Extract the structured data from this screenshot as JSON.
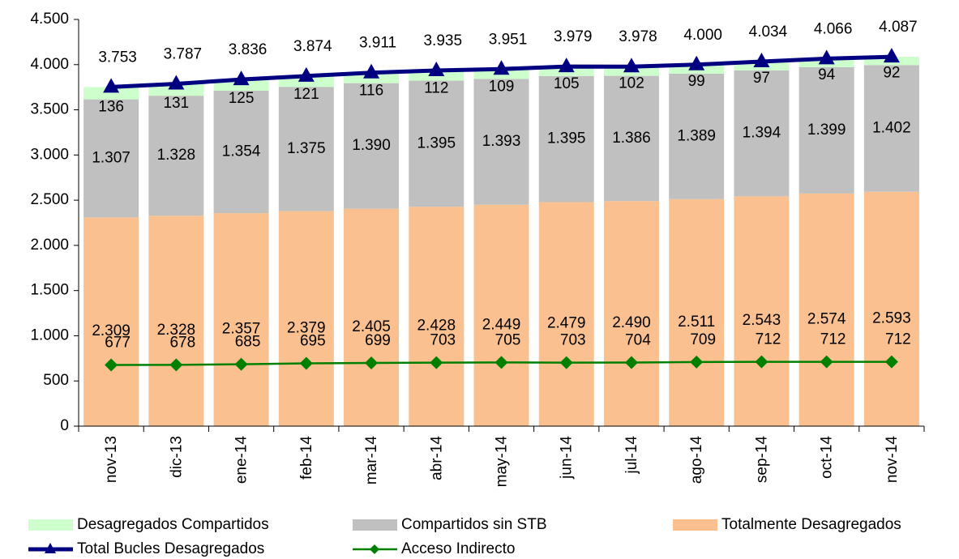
{
  "chart_data": {
    "type": "bar",
    "stacked": true,
    "categories": [
      "nov-13",
      "dic-13",
      "ene-14",
      "feb-14",
      "mar-14",
      "abr-14",
      "may-14",
      "jun-14",
      "jul-14",
      "ago-14",
      "sep-14",
      "oct-14",
      "nov-14"
    ],
    "ylim": [
      0,
      4500
    ],
    "yticks": [
      0,
      500,
      {
        "value": 1000,
        "label": "1.000"
      },
      {
        "value": 1500,
        "label": "1.500"
      },
      {
        "value": 2000,
        "label": "2.000"
      },
      {
        "value": 2500,
        "label": "2.500"
      },
      {
        "value": 3000,
        "label": "3.000"
      },
      {
        "value": 3500,
        "label": "3.500"
      },
      {
        "value": 4000,
        "label": "4.000"
      },
      {
        "value": 4500,
        "label": "4.500"
      }
    ],
    "grid": false,
    "legend": "bottom",
    "series": [
      {
        "name": "Totalmente Desagregados",
        "type": "bar",
        "color": "#fac090",
        "values": [
          2309,
          2328,
          2357,
          2379,
          2405,
          2428,
          2449,
          2479,
          2490,
          2511,
          2543,
          2574,
          2593
        ],
        "value_labels": [
          "2.309",
          "2.328",
          "2.357",
          "2.379",
          "2.405",
          "2.428",
          "2.449",
          "2.479",
          "2.490",
          "2.511",
          "2.543",
          "2.574",
          "2.593"
        ]
      },
      {
        "name": "Compartidos sin STB",
        "type": "bar",
        "color": "#c0c0c0",
        "values": [
          1307,
          1328,
          1354,
          1375,
          1390,
          1395,
          1393,
          1395,
          1386,
          1389,
          1394,
          1399,
          1402
        ],
        "value_labels": [
          "1.307",
          "1.328",
          "1.354",
          "1.375",
          "1.390",
          "1.395",
          "1.393",
          "1.395",
          "1.386",
          "1.389",
          "1.394",
          "1.399",
          "1.402"
        ]
      },
      {
        "name": "Desagregados Compartidos",
        "type": "bar",
        "color": "#ccffcc",
        "values": [
          136,
          131,
          125,
          121,
          116,
          112,
          109,
          105,
          102,
          99,
          97,
          94,
          92
        ]
      },
      {
        "name": "Total Bucles Desagregados",
        "type": "line",
        "color": "#000080",
        "marker": "triangle",
        "values": [
          3753,
          3787,
          3836,
          3874,
          3911,
          3935,
          3951,
          3979,
          3978,
          4000,
          4034,
          4066,
          4087
        ],
        "value_labels": [
          "3.753",
          "3.787",
          "3.836",
          "3.874",
          "3.911",
          "3.935",
          "3.951",
          "3.979",
          "3.978",
          "4.000",
          "4.034",
          "4.066",
          "4.087"
        ]
      },
      {
        "name": "Acceso Indirecto",
        "type": "line",
        "color": "#008000",
        "marker": "diamond",
        "values": [
          677,
          678,
          685,
          695,
          699,
          703,
          705,
          703,
          704,
          709,
          712,
          712,
          712
        ]
      }
    ]
  }
}
